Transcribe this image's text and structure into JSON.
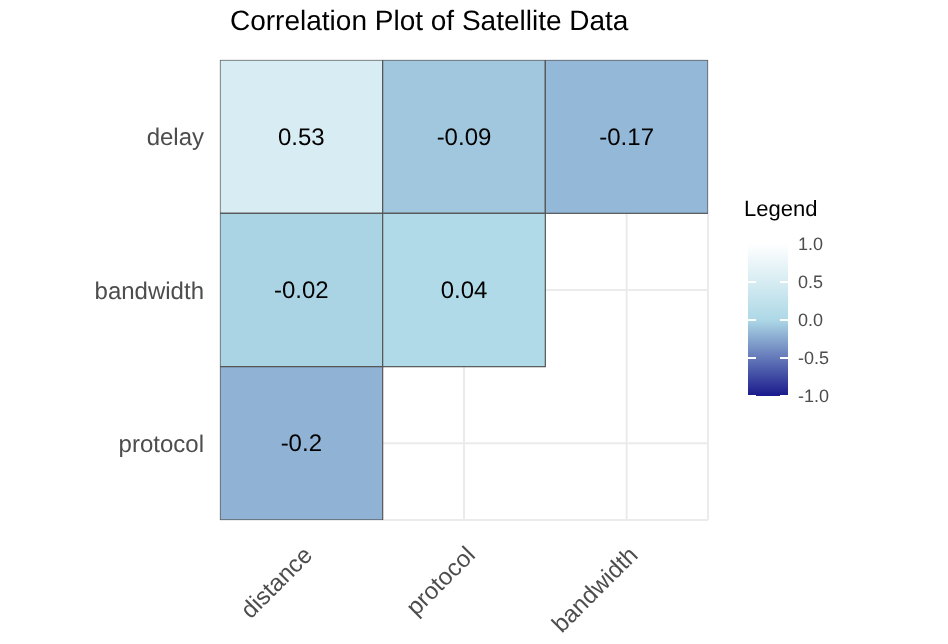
{
  "chart_data": {
    "type": "heatmap",
    "title": "Correlation Plot of Satellite Data",
    "legend_title": "Legend",
    "categories": [
      "distance",
      "protocol",
      "bandwidth"
    ],
    "y_categories": [
      "delay",
      "bandwidth",
      "protocol"
    ],
    "cells": [
      [
        0.53,
        -0.09,
        -0.17
      ],
      [
        -0.02,
        0.04,
        null
      ],
      [
        -0.2,
        null,
        null
      ]
    ],
    "clim": [
      -1,
      1
    ],
    "cticks": [
      {
        "value": -1,
        "label": "-1.0"
      },
      {
        "value": -0.5,
        "label": "-0.5"
      },
      {
        "value": 0,
        "label": "0.0"
      },
      {
        "value": 0.5,
        "label": "0.5"
      },
      {
        "value": 1,
        "label": "1.0"
      }
    ],
    "data_labels": true,
    "grid": true
  }
}
